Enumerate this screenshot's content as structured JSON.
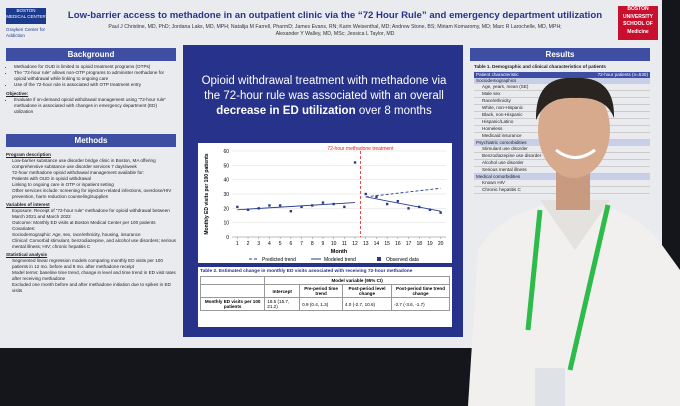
{
  "header": {
    "title": "Low-barrier access to methadone in an outpatient clinic via the “72 Hour Rule” and emergency department utilization",
    "authors": [
      "Paul J Christine, MD, PhD; Jordana Laks, MD, MPH; Natalija M Farrell, PharmD; James Evans, RN; Karin Weisenthal, MD; Andrew Stone, BS; Miriam Komaromy, MD; Marc R Larochelle, MD, MPH;",
      "Alexander Y Walley, MD, MSc; Jessica L Taylor, MD"
    ]
  },
  "logos": {
    "left": [
      "BOSTON",
      "MEDICAL CENTER"
    ],
    "left_sub": "Grayken Center for Addiction",
    "right": [
      "BOSTON",
      "UNIVERSITY",
      "SCHOOL OF",
      "Medicine"
    ]
  },
  "background": {
    "heading": "Background",
    "bullets": [
      "Methadone for OUD is limited to opioid treatment programs (OTPs)",
      "The “72-hour rule” allows non-OTP programs to administer methadone for opioid withdrawal while linking to ongoing care",
      "Use of the 72-hour rule is associated with OTP treatment entry"
    ],
    "objective_label": "Objective:",
    "objective": "Evaluate if on-demand opioid withdrawal management using “72-hour rule” methadone is associated with changes in emergency department (ED) utilization"
  },
  "methods": {
    "heading": "Methods",
    "items": [
      "Program description",
      "Low-barrier substance use disorder bridge clinic in Boston, MA offering comprehensive substance use disorder services 7 days/week",
      "72-hour methadone opioid withdrawal management available for:",
      "Patients with OUD in opioid withdrawal",
      "Linking to ongoing care in OTP or inpatient setting",
      "Other services include: screening for injection-related infections, overdose/HIV prevention, harm reduction counseling/supplies",
      "Variables of interest",
      "Exposure: Receipt of “72-hour rule” methadone for opioid withdrawal between March 2021 and March 2022",
      "Outcome: Monthly ED visits at Boston Medical Center per 100 patients",
      "Covariates:",
      "Sociodemographic: Age, sex, race/ethnicity, housing, insurance",
      "Clinical: Comorbid stimulant, benzodiazepine, and alcohol use disorders; serious mental illness; HIV; chronic hepatitis C",
      "Statistical analysis",
      "Segmented linear regression models comparing monthly ED visits per 100 patients in 12 mo. before and 8 mo. after methadone receipt",
      "Model terms: baseline time trend, change in level and time trend in ED visit rates after receiving methadone",
      "Excluded one month before and after methadone initiation due to spikes in ED visits"
    ]
  },
  "headline": [
    "Opioid withdrawal treatment with methadone via the 72-hour rule was associated with an overall",
    "decrease in ED utilization",
    "over 8 months"
  ],
  "chart": {
    "type": "line",
    "ylabel": "Monthly ED visits per 100 patients",
    "xlabel": "Month",
    "annotation": "72-hour methadone treatment",
    "intervention_x": 12.5,
    "xlim": [
      0.5,
      20.5
    ],
    "ylim": [
      0,
      60
    ],
    "xticks": [
      1,
      2,
      3,
      4,
      5,
      6,
      7,
      8,
      9,
      10,
      11,
      12,
      13,
      14,
      15,
      16,
      17,
      18,
      19,
      20
    ],
    "yticks": [
      0,
      10,
      20,
      30,
      40,
      50,
      60
    ],
    "series": [
      {
        "name": "Predicted trend",
        "color": "#2b3a8f",
        "x": [
          13,
          20
        ],
        "values": [
          28,
          34
        ]
      },
      {
        "name": "Modeled trend",
        "color": "#2b3a8f",
        "x": [
          1,
          12,
          13,
          20
        ],
        "values": [
          19,
          24,
          null,
          null
        ]
      },
      {
        "name": "Modeled trend (post)",
        "color": "#2b3a8f",
        "x": [
          13,
          20
        ],
        "values": [
          28,
          18
        ]
      },
      {
        "name": "Observed data",
        "color": "#2b3a8f",
        "x": [
          1,
          2,
          3,
          4,
          5,
          6,
          7,
          8,
          9,
          10,
          11,
          12,
          13,
          14,
          15,
          16,
          17,
          18,
          19,
          20
        ],
        "values": [
          21,
          19,
          20,
          22,
          22,
          18,
          21,
          22,
          24,
          23,
          21,
          52,
          30,
          28,
          23,
          25,
          20,
          21,
          19,
          17
        ]
      }
    ]
  },
  "table": {
    "caption": "Table 2. Estimated change in monthly ED visits associated with receiving 72-hour methadone",
    "group": "Model variable (95% CI)",
    "columns": [
      "Intercept",
      "Pre-period time trend",
      "Post-period level change",
      "Post-period time trend change"
    ],
    "row_label": "Monthly ED visits per 100 patients",
    "row": [
      "18.5 (15.7, 21.2)",
      "0.9 (0.4, 1.3)",
      "4.0 (-2.7, 10.6)",
      "-2.7 (-3.6, -1.7)"
    ]
  },
  "results": {
    "heading": "Results",
    "caption": "Table 1. Demographic and clinical characteristics of patients",
    "header": [
      "Patient characteristic",
      "72-hour patients (n=530)"
    ],
    "rows": [
      "Sociodemographics",
      "Age, years, mean (SE)",
      "Male sex",
      "Race/ethnicity",
      "White, non-Hispanic",
      "Black, non-Hispanic",
      "Hispanic/Latino",
      "Homeless",
      "Medicaid insurance",
      "Psychiatric comorbidities",
      "Stimulant use disorder",
      "Benzodiazepine use disorder",
      "Alcohol use disorder",
      "Serious mental illness",
      "Medical comorbidities",
      "Known HIV",
      "Chronic hepatitis C"
    ]
  }
}
